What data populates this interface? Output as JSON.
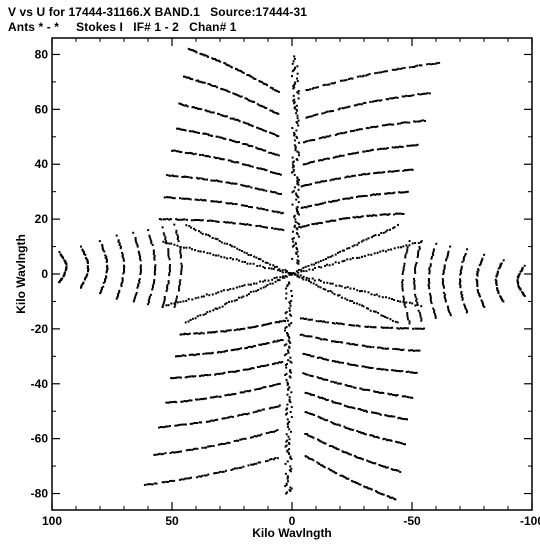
{
  "header": {
    "line1": "V vs U for 17444-31166.X BAND.1   Source:17444-31",
    "line2": "Ants * - *     Stokes I   IF# 1 - 2   Chan# 1"
  },
  "chart_data": {
    "type": "scatter",
    "xlabel": "Kilo Wavlngth",
    "ylabel": "Kilo Wavlngth",
    "xlim": [
      100,
      -100
    ],
    "ylim": [
      -86,
      86
    ],
    "x_ticks": [
      100,
      50,
      0,
      -50,
      -100
    ],
    "y_ticks": [
      80,
      60,
      40,
      20,
      0,
      -20,
      -40,
      -60,
      -80
    ],
    "x_tick_labels": [
      "100",
      "50",
      "0",
      "-50",
      "-100"
    ],
    "y_tick_labels": [
      "80",
      "60",
      "40",
      "20",
      "0",
      "-20",
      "-40",
      "-60",
      "-80"
    ],
    "grid": false,
    "marker_color": "#000000",
    "description_of_coverage": "uv-tracks symmetric about origin; 7-arm snowflake pattern",
    "tracks_upper_left": [
      {
        "start": [
          43,
          82
        ],
        "end": [
          5,
          66
        ]
      },
      {
        "start": [
          45,
          72
        ],
        "end": [
          5,
          58
        ]
      },
      {
        "start": [
          47,
          62
        ],
        "end": [
          5,
          50
        ]
      },
      {
        "start": [
          48,
          53
        ],
        "end": [
          5,
          43
        ]
      },
      {
        "start": [
          50,
          45
        ],
        "end": [
          4,
          36
        ]
      },
      {
        "start": [
          52,
          36
        ],
        "end": [
          4,
          29
        ]
      },
      {
        "start": [
          53,
          28
        ],
        "end": [
          3,
          22
        ]
      },
      {
        "start": [
          55,
          20
        ],
        "end": [
          3,
          16
        ]
      }
    ],
    "tracks_upper_right": [
      {
        "start": [
          -6,
          67
        ],
        "end": [
          -62,
          77
        ]
      },
      {
        "start": [
          -6,
          57
        ],
        "end": [
          -58,
          66
        ]
      },
      {
        "start": [
          -5,
          48
        ],
        "end": [
          -56,
          56
        ]
      },
      {
        "start": [
          -5,
          40
        ],
        "end": [
          -53,
          47
        ]
      },
      {
        "start": [
          -4,
          32
        ],
        "end": [
          -51,
          38
        ]
      },
      {
        "start": [
          -4,
          24
        ],
        "end": [
          -49,
          30
        ]
      },
      {
        "start": [
          -3,
          17
        ],
        "end": [
          -47,
          22
        ]
      }
    ],
    "tracks_left_wing": [
      {
        "u": 97,
        "v_range": [
          -3,
          8
        ]
      },
      {
        "u": 88,
        "v_range": [
          -5,
          10
        ]
      },
      {
        "u": 80,
        "v_range": [
          -7,
          12
        ]
      },
      {
        "u": 73,
        "v_range": [
          -9,
          14
        ]
      },
      {
        "u": 66,
        "v_range": [
          -10,
          15
        ]
      },
      {
        "u": 60,
        "v_range": [
          -11,
          16
        ]
      },
      {
        "u": 54,
        "v_range": [
          -12,
          17
        ]
      },
      {
        "u": 49,
        "v_range": [
          -12,
          18
        ]
      }
    ],
    "tracks_right_wing": [
      {
        "u": -97,
        "v_range": [
          -8,
          3
        ]
      },
      {
        "u": -88,
        "v_range": [
          -10,
          5
        ]
      },
      {
        "u": -80,
        "v_range": [
          -12,
          7
        ]
      },
      {
        "u": -73,
        "v_range": [
          -14,
          9
        ]
      },
      {
        "u": -66,
        "v_range": [
          -15,
          10
        ]
      },
      {
        "u": -60,
        "v_range": [
          -16,
          11
        ]
      },
      {
        "u": -54,
        "v_range": [
          -17,
          12
        ]
      },
      {
        "u": -49,
        "v_range": [
          -18,
          12
        ]
      }
    ]
  }
}
